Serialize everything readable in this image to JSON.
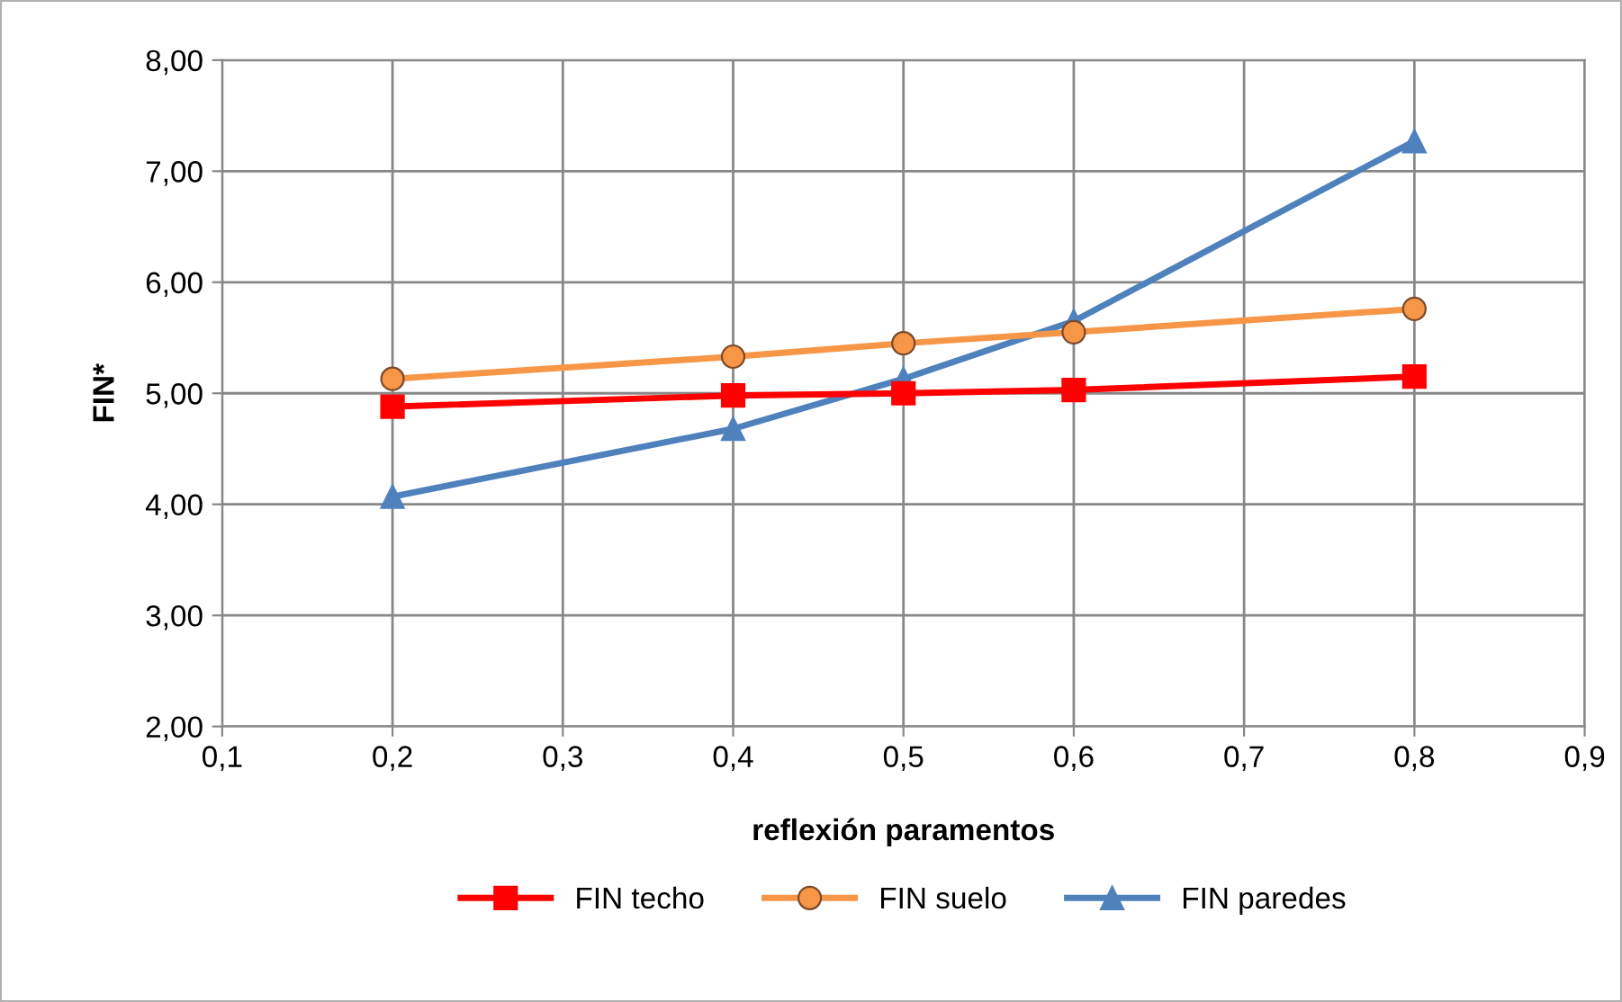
{
  "chart_data": {
    "type": "line",
    "xlabel": "reflexión paramentos",
    "ylabel": "FIN*",
    "x": [
      0.2,
      0.4,
      0.5,
      0.6,
      0.8
    ],
    "series": [
      {
        "name": "FIN techo",
        "color": "#ff0000",
        "marker": "square",
        "values": [
          4.88,
          4.98,
          5.0,
          5.03,
          5.15
        ]
      },
      {
        "name": "FIN suelo",
        "color": "#f79646",
        "marker": "circle",
        "values": [
          5.13,
          5.33,
          5.45,
          5.55,
          5.76
        ]
      },
      {
        "name": "FIN paredes",
        "color": "#4f81bd",
        "marker": "triangle",
        "values": [
          4.07,
          4.68,
          5.13,
          5.65,
          7.27
        ]
      }
    ],
    "xlim": [
      0.1,
      0.9
    ],
    "xticks": [
      {
        "value": 0.1,
        "label": "0,1"
      },
      {
        "value": 0.2,
        "label": "0,2"
      },
      {
        "value": 0.3,
        "label": "0,3"
      },
      {
        "value": 0.4,
        "label": "0,4"
      },
      {
        "value": 0.5,
        "label": "0,5"
      },
      {
        "value": 0.6,
        "label": "0,6"
      },
      {
        "value": 0.7,
        "label": "0,7"
      },
      {
        "value": 0.8,
        "label": "0,8"
      },
      {
        "value": 0.9,
        "label": "0,9"
      }
    ],
    "ylim": [
      2,
      8
    ],
    "yticks": [
      {
        "value": 2,
        "label": "2,00"
      },
      {
        "value": 3,
        "label": "3,00"
      },
      {
        "value": 4,
        "label": "4,00"
      },
      {
        "value": 5,
        "label": "5,00"
      },
      {
        "value": 6,
        "label": "6,00"
      },
      {
        "value": 7,
        "label": "7,00"
      },
      {
        "value": 8,
        "label": "8,00"
      }
    ],
    "grid": true,
    "legend": "bottom",
    "line_style": "solid"
  }
}
